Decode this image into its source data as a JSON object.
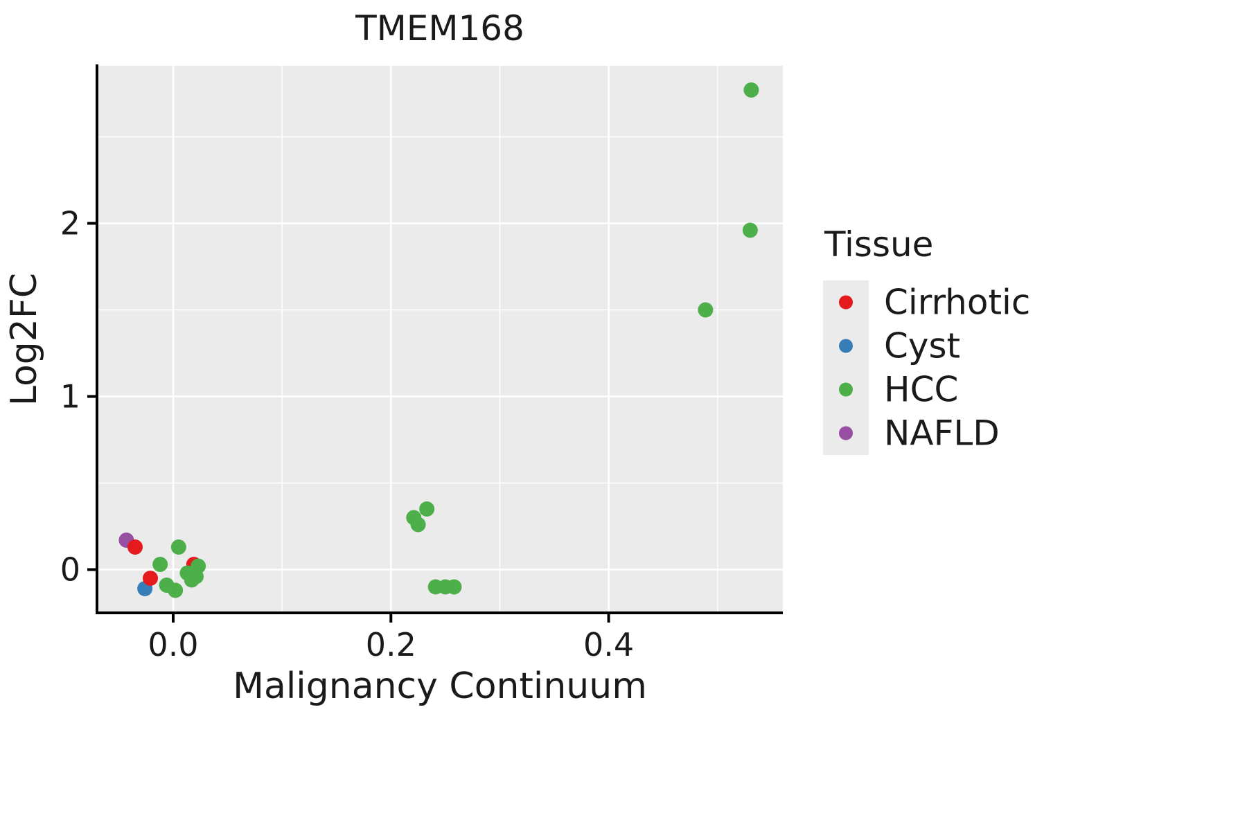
{
  "chart_data": {
    "type": "scatter",
    "title": "TMEM168",
    "xlabel": "Malignancy Continuum",
    "ylabel": "Log2FC",
    "xlim": [
      -0.07,
      0.56
    ],
    "ylim": [
      -0.25,
      2.91
    ],
    "x_major_ticks": [
      0.0,
      0.2,
      0.4
    ],
    "x_tick_labels": [
      "0.0",
      "0.2",
      "0.4"
    ],
    "x_minor_ticks": [
      0.1,
      0.3,
      0.5
    ],
    "y_major_ticks": [
      0,
      1,
      2
    ],
    "y_tick_labels": [
      "0",
      "1",
      "2"
    ],
    "y_minor_ticks": [
      0.5,
      1.5,
      2.5
    ],
    "panel_bg": "#EBEBEB",
    "grid_color": "#FFFFFF",
    "axis_line_color": "#000000",
    "point_radius": 11,
    "legend_position": "right",
    "grid": true,
    "series": [
      {
        "name": "NAFLD",
        "color": "#984EA3",
        "points": [
          [
            -0.043,
            0.17
          ]
        ]
      },
      {
        "name": "Cyst",
        "color": "#377EB8",
        "points": [
          [
            -0.026,
            -0.11
          ]
        ]
      },
      {
        "name": "Cirrhotic",
        "color": "#E41A1C",
        "points": [
          [
            -0.035,
            0.13
          ],
          [
            -0.021,
            -0.05
          ],
          [
            0.019,
            0.03
          ]
        ]
      },
      {
        "name": "HCC",
        "color": "#4DAF4A",
        "points": [
          [
            -0.012,
            0.03
          ],
          [
            0.005,
            0.13
          ],
          [
            -0.006,
            -0.09
          ],
          [
            0.002,
            -0.12
          ],
          [
            0.013,
            -0.02
          ],
          [
            0.017,
            -0.06
          ],
          [
            0.021,
            -0.04
          ],
          [
            0.023,
            0.02
          ],
          [
            0.221,
            0.3
          ],
          [
            0.225,
            0.26
          ],
          [
            0.233,
            0.35
          ],
          [
            0.241,
            -0.1
          ],
          [
            0.25,
            -0.1
          ],
          [
            0.258,
            -0.1
          ],
          [
            0.489,
            1.5
          ],
          [
            0.53,
            1.96
          ],
          [
            0.531,
            2.77
          ]
        ]
      }
    ]
  },
  "legend": {
    "title": "Tissue",
    "key_bg": "#EBEBEB",
    "items": [
      {
        "label": "Cirrhotic",
        "color": "#E41A1C"
      },
      {
        "label": "Cyst",
        "color": "#377EB8"
      },
      {
        "label": "HCC",
        "color": "#4DAF4A"
      },
      {
        "label": "NAFLD",
        "color": "#984EA3"
      }
    ]
  }
}
